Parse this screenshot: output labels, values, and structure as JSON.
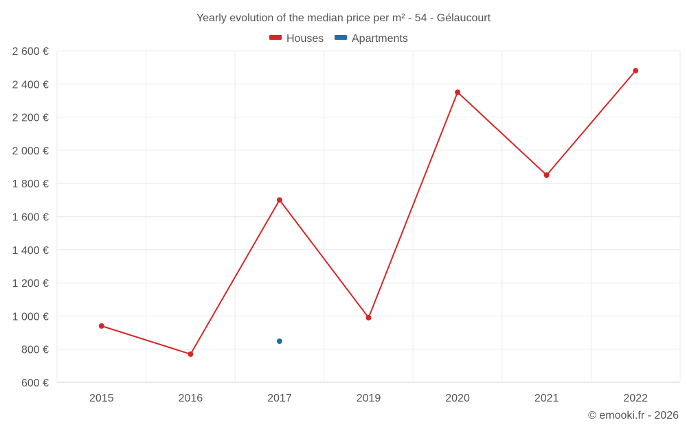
{
  "chart_data": {
    "type": "line",
    "title": "Yearly evolution of the median price per m² - 54 - Gélaucourt",
    "xlabel": "",
    "ylabel": "",
    "categories": [
      "2015",
      "2016",
      "2017",
      "2019",
      "2020",
      "2021",
      "2022"
    ],
    "y_ticks": [
      "600 €",
      "800 €",
      "1 000 €",
      "1 200 €",
      "1 400 €",
      "1 600 €",
      "1 800 €",
      "2 000 €",
      "2 200 €",
      "2 400 €",
      "2 600 €"
    ],
    "ylim": [
      600,
      2600
    ],
    "grid": true,
    "legend_position": "top-center",
    "series": [
      {
        "name": "Houses",
        "color": "#d62728",
        "values": [
          940,
          770,
          1700,
          990,
          2350,
          1850,
          2480
        ]
      },
      {
        "name": "Apartments",
        "color": "#1f6fa5",
        "values": [
          null,
          null,
          848,
          null,
          null,
          null,
          null
        ]
      }
    ],
    "credit": "© emooki.fr - 2026"
  }
}
